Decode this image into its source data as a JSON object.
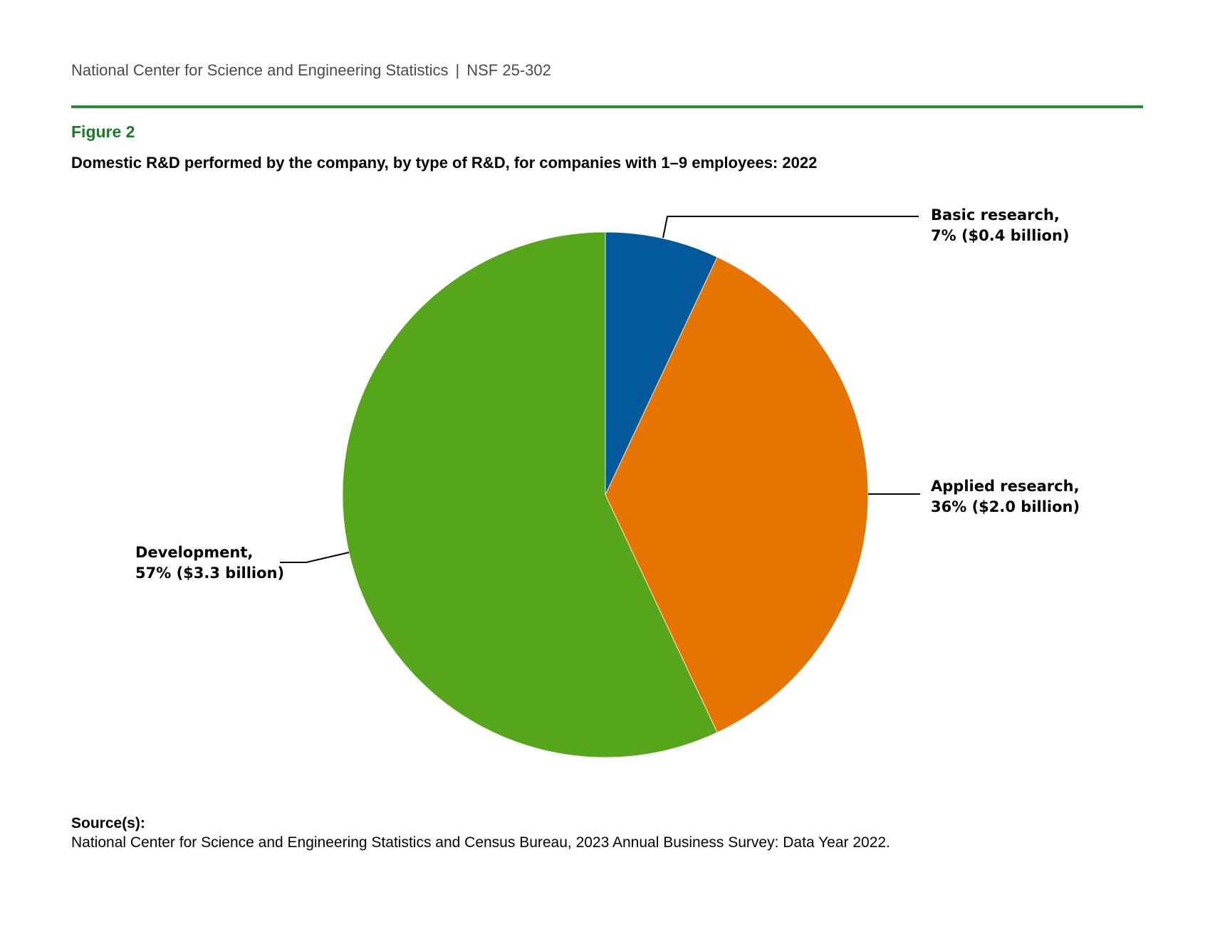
{
  "header": {
    "org": "National Center for Science and Engineering Statistics",
    "separator": "|",
    "report_id": "NSF 25-302"
  },
  "figure": {
    "label": "Figure 2",
    "title": "Domestic R&D performed by the company, by type of R&D, for companies with 1–9 employees: 2022"
  },
  "chart_data": {
    "type": "pie",
    "title": "Domestic R&D performed by the company, by type of R&D, for companies with 1–9 employees: 2022",
    "units": "percent of total domestic R&D; dollars in billions",
    "start_angle": "12 o'clock",
    "direction": "clockwise",
    "slices": [
      {
        "name": "Basic research",
        "percent": 7,
        "value_billions": 0.4,
        "color": "#005a9c",
        "label_line1": "Basic research,",
        "label_line2": "7% ($0.4 billion)",
        "label_side": "top-right"
      },
      {
        "name": "Applied research",
        "percent": 36,
        "value_billions": 2.0,
        "color": "#e57400",
        "label_line1": "Applied research,",
        "label_line2": "36% ($2.0 billion)",
        "label_side": "right"
      },
      {
        "name": "Development",
        "percent": 57,
        "value_billions": 3.3,
        "color": "#56a61b",
        "label_line1": "Development,",
        "label_line2": "57% ($3.3 billion)",
        "label_side": "left"
      }
    ]
  },
  "source": {
    "label": "Source(s):",
    "text": "National Center for Science and Engineering Statistics and Census Bureau, 2023 Annual Business Survey: Data Year 2022."
  }
}
